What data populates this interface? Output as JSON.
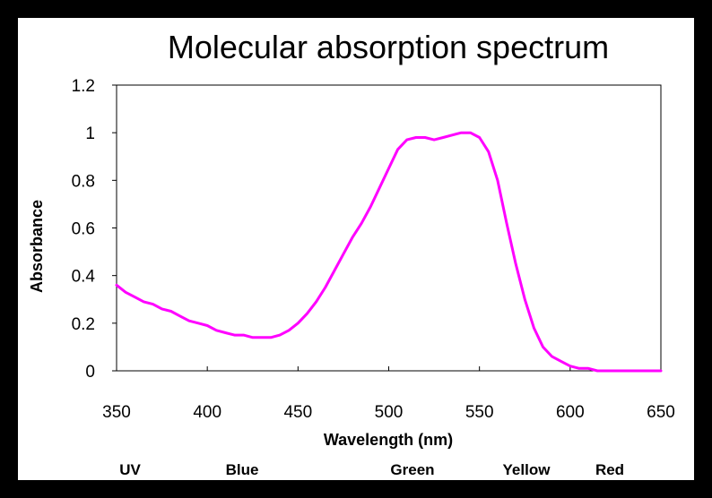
{
  "chart_data": {
    "type": "line",
    "title": "Molecular absorption spectrum",
    "xlabel": "Wavelength (nm)",
    "ylabel": "Absorbance",
    "xlim": [
      350,
      650
    ],
    "ylim": [
      0,
      1.2
    ],
    "x_ticks": [
      "350",
      "400",
      "450",
      "500",
      "550",
      "600",
      "650"
    ],
    "y_ticks": [
      "0",
      "0.2",
      "0.4",
      "0.6",
      "0.8",
      "1",
      "1.2"
    ],
    "grid": false,
    "line_color": "#ff00ff",
    "series": [
      {
        "x": [
          350,
          355,
          360,
          365,
          370,
          375,
          380,
          385,
          390,
          395,
          400,
          405,
          410,
          415,
          420,
          425,
          430,
          435,
          440,
          445,
          450,
          455,
          460,
          465,
          470,
          475,
          480,
          485,
          490,
          495,
          500,
          505,
          510,
          515,
          520,
          525,
          530,
          535,
          540,
          545,
          550,
          555,
          560,
          565,
          570,
          575,
          580,
          585,
          590,
          595,
          600,
          605,
          610,
          615,
          620,
          625,
          630,
          635,
          640,
          645,
          650
        ],
        "y": [
          0.36,
          0.33,
          0.31,
          0.29,
          0.28,
          0.26,
          0.25,
          0.23,
          0.21,
          0.2,
          0.19,
          0.17,
          0.16,
          0.15,
          0.15,
          0.14,
          0.14,
          0.14,
          0.15,
          0.17,
          0.2,
          0.24,
          0.29,
          0.35,
          0.42,
          0.49,
          0.56,
          0.62,
          0.69,
          0.77,
          0.85,
          0.93,
          0.97,
          0.98,
          0.98,
          0.97,
          0.98,
          0.99,
          1.0,
          1.0,
          0.98,
          0.92,
          0.8,
          0.62,
          0.45,
          0.3,
          0.18,
          0.1,
          0.06,
          0.04,
          0.02,
          0.01,
          0.01,
          0.0,
          0.0,
          0.0,
          0.0,
          0.0,
          0.0,
          0.0,
          0.0
        ]
      }
    ],
    "regions": [
      "UV",
      "Blue",
      "Green",
      "Yellow",
      "Red"
    ]
  }
}
